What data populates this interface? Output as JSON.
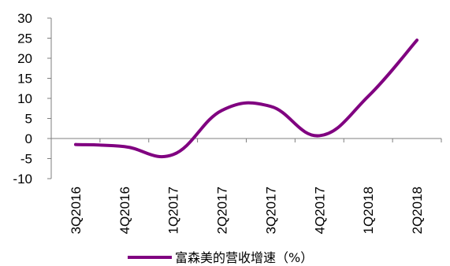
{
  "chart_data": {
    "type": "line",
    "categories": [
      "3Q2016",
      "4Q2016",
      "1Q2017",
      "2Q2017",
      "3Q2017",
      "4Q2017",
      "1Q2018",
      "2Q2018"
    ],
    "series": [
      {
        "name": "富森美的营收增速（%）",
        "values": [
          -1.5,
          -2.0,
          -4.0,
          7.0,
          8.0,
          0.7,
          10.5,
          24.5
        ],
        "color": "#800080"
      }
    ],
    "y_ticks": [
      "30",
      "25",
      "20",
      "15",
      "10",
      "5",
      "0",
      "-5",
      "-10"
    ],
    "ylim": [
      -10,
      30
    ],
    "grid": false,
    "legend_position": "bottom",
    "smooth": true
  }
}
